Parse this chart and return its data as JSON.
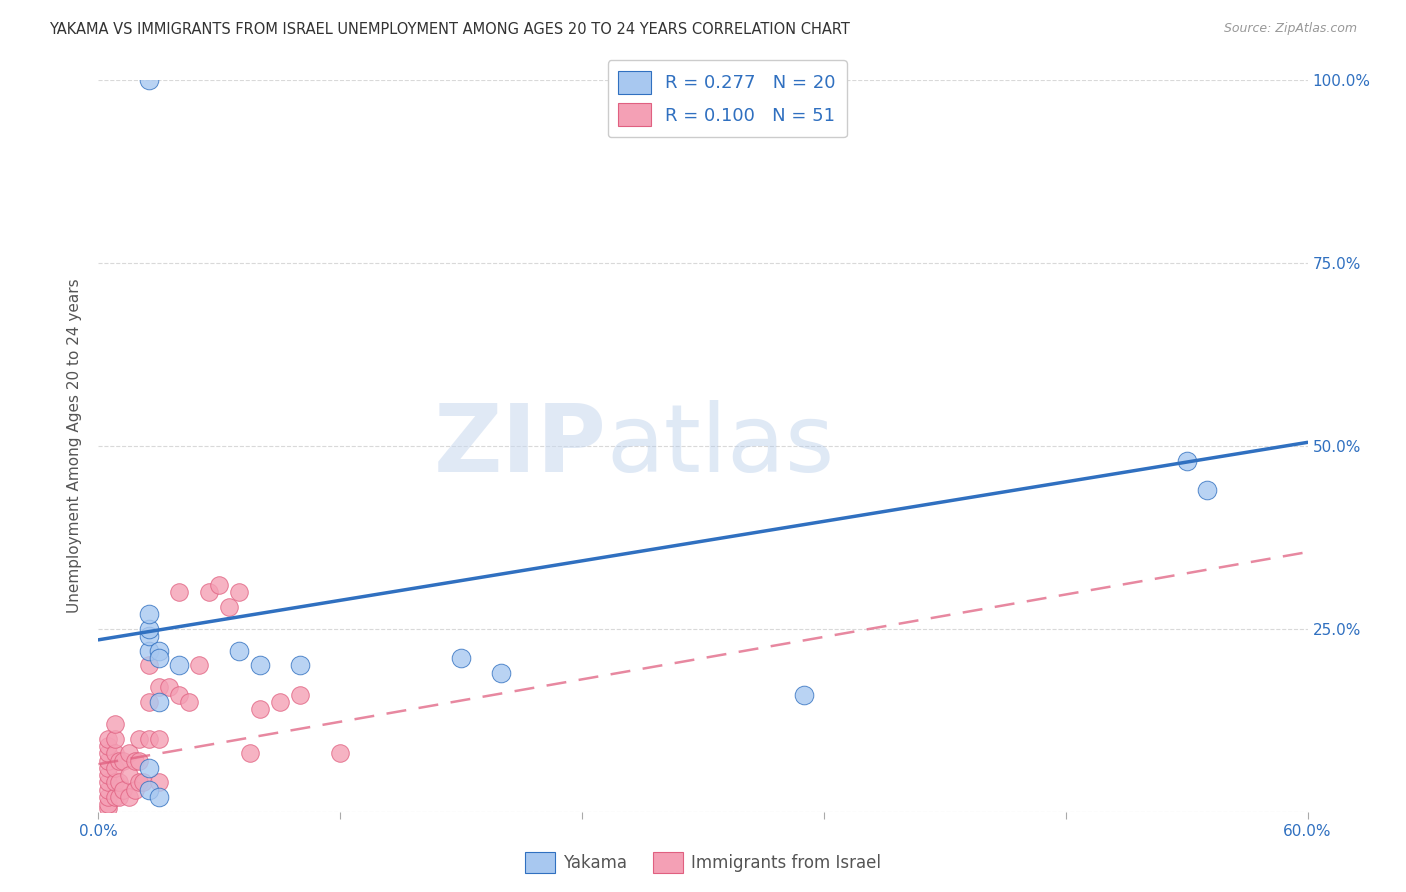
{
  "title": "YAKAMA VS IMMIGRANTS FROM ISRAEL UNEMPLOYMENT AMONG AGES 20 TO 24 YEARS CORRELATION CHART",
  "source": "Source: ZipAtlas.com",
  "ylabel_label": "Unemployment Among Ages 20 to 24 years",
  "legend_labels": [
    "Yakama",
    "Immigrants from Israel"
  ],
  "yakama_color": "#a8c8f0",
  "israel_color": "#f4a0b5",
  "trendline_blue": "#3070c0",
  "trendline_pink": "#e06080",
  "watermark_zip": "ZIP",
  "watermark_atlas": "atlas",
  "yakama_x": [
    0.025,
    0.025,
    0.025,
    0.025,
    0.025,
    0.025,
    0.03,
    0.025,
    0.03,
    0.07,
    0.08,
    0.1,
    0.18,
    0.2,
    0.35,
    0.54,
    0.55,
    0.03,
    0.03,
    0.04
  ],
  "yakama_y": [
    0.03,
    0.06,
    0.22,
    0.24,
    0.25,
    0.27,
    0.22,
    1.0,
    0.02,
    0.22,
    0.2,
    0.2,
    0.21,
    0.19,
    0.16,
    0.48,
    0.44,
    0.21,
    0.15,
    0.2
  ],
  "israel_x": [
    0.005,
    0.005,
    0.005,
    0.005,
    0.005,
    0.005,
    0.005,
    0.005,
    0.005,
    0.005,
    0.005,
    0.008,
    0.008,
    0.008,
    0.008,
    0.008,
    0.008,
    0.01,
    0.01,
    0.01,
    0.012,
    0.012,
    0.015,
    0.015,
    0.015,
    0.018,
    0.018,
    0.02,
    0.02,
    0.02,
    0.022,
    0.025,
    0.025,
    0.025,
    0.03,
    0.03,
    0.03,
    0.035,
    0.04,
    0.04,
    0.045,
    0.05,
    0.055,
    0.06,
    0.065,
    0.07,
    0.075,
    0.08,
    0.09,
    0.1,
    0.12
  ],
  "israel_y": [
    0.005,
    0.01,
    0.02,
    0.03,
    0.04,
    0.05,
    0.06,
    0.07,
    0.08,
    0.09,
    0.1,
    0.02,
    0.04,
    0.06,
    0.08,
    0.1,
    0.12,
    0.02,
    0.04,
    0.07,
    0.03,
    0.07,
    0.02,
    0.05,
    0.08,
    0.03,
    0.07,
    0.04,
    0.07,
    0.1,
    0.04,
    0.1,
    0.15,
    0.2,
    0.04,
    0.1,
    0.17,
    0.17,
    0.16,
    0.3,
    0.15,
    0.2,
    0.3,
    0.31,
    0.28,
    0.3,
    0.08,
    0.14,
    0.15,
    0.16,
    0.08
  ],
  "blue_line_x0": 0.0,
  "blue_line_y0": 0.235,
  "blue_line_x1": 0.6,
  "blue_line_y1": 0.505,
  "pink_line_x0": 0.0,
  "pink_line_y0": 0.065,
  "pink_line_x1": 0.6,
  "pink_line_y1": 0.355,
  "xlim": [
    0.0,
    0.6
  ],
  "ylim": [
    0.0,
    1.0
  ],
  "xticks": [
    0.0,
    0.12,
    0.24,
    0.36,
    0.48,
    0.6
  ],
  "xtick_labels": [
    "0.0%",
    "",
    "",
    "",
    "",
    "60.0%"
  ],
  "yticks": [
    0.0,
    0.25,
    0.5,
    0.75,
    1.0
  ],
  "ytick_labels_right": [
    "",
    "25.0%",
    "50.0%",
    "75.0%",
    "100.0%"
  ],
  "background_color": "#ffffff",
  "grid_color": "#d0d0d0"
}
